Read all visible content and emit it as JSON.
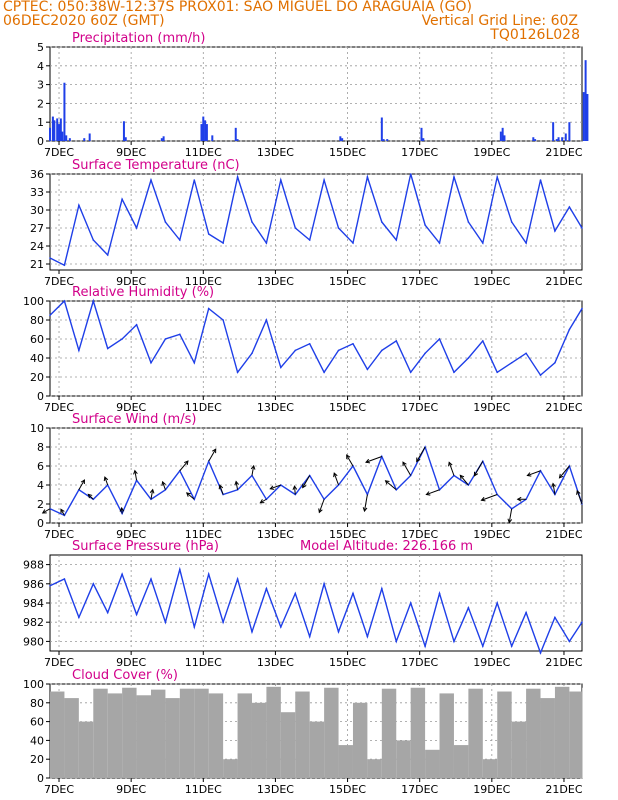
{
  "header": {
    "line1": "CPTEC:  050:38W-12:37S  PROX01: SAO MIGUEL DO ARAGUAIA (GO)",
    "line2": "06DEC2020 60Z (GMT)",
    "grid_note": "Vertical Grid Line: 60Z",
    "code": "TQ0126L028"
  },
  "colors": {
    "header": "#e07000",
    "title": "#d2008a",
    "series": "#1f3fe8",
    "cloud": "#a6a6a6",
    "axis": "#000000"
  },
  "x_axis": {
    "start": "06DEC2020 18Z",
    "end": "21DEC2020 00Z",
    "tick_labels": [
      "7DEC",
      "9DEC",
      "11DEC",
      "13DEC",
      "15DEC",
      "17DEC",
      "19DEC",
      "21DEC"
    ]
  },
  "chart_data": [
    {
      "type": "bar",
      "title": "Precipitation (mm/h)",
      "ylim": [
        0,
        5
      ],
      "y_ticks": [
        "0",
        "1",
        "2",
        "3",
        "4",
        "5"
      ],
      "x_day": [
        0.0,
        0.08,
        0.12,
        0.2,
        0.25,
        0.3,
        0.34,
        0.4,
        0.45,
        0.55,
        0.95,
        1.1,
        2.05,
        2.1,
        3.1,
        3.15,
        4.2,
        4.25,
        4.3,
        4.35,
        4.5,
        5.15,
        5.2,
        8.05,
        8.1,
        9.2,
        9.25,
        9.35,
        10.3,
        10.35,
        12.5,
        12.55,
        12.6,
        13.4,
        13.45,
        13.95,
        14.05,
        14.1,
        14.2,
        14.3,
        14.4,
        14.8,
        14.85,
        14.9
      ],
      "values": [
        0.7,
        1.3,
        1.1,
        1.2,
        0.9,
        1.2,
        0.5,
        3.1,
        0.3,
        0.15,
        0.15,
        0.4,
        1.05,
        0.2,
        0.15,
        0.25,
        0.9,
        1.3,
        1.1,
        0.9,
        0.3,
        0.7,
        0.1,
        0.25,
        0.15,
        1.25,
        0.1,
        0.1,
        0.7,
        0.15,
        0.5,
        0.7,
        0.3,
        0.2,
        0.1,
        1.0,
        0.1,
        0.2,
        0.2,
        0.4,
        1.0,
        2.6,
        4.3,
        2.5
      ]
    },
    {
      "type": "line",
      "title": "Surface Temperature (nC)",
      "ylim": [
        20,
        36
      ],
      "y_ticks": [
        "21",
        "24",
        "27",
        "30",
        "33",
        "36"
      ],
      "x_day": [
        0.0,
        0.4,
        0.8,
        1.2,
        1.6,
        2.0,
        2.4,
        2.8,
        3.2,
        3.6,
        4.0,
        4.4,
        4.8,
        5.2,
        5.6,
        6.0,
        6.4,
        6.8,
        7.2,
        7.6,
        8.0,
        8.4,
        8.8,
        9.2,
        9.6,
        10.0,
        10.4,
        10.8,
        11.2,
        11.6,
        12.0,
        12.4,
        12.8,
        13.2,
        13.6,
        14.0,
        14.4,
        14.75
      ],
      "values": [
        22.0,
        20.8,
        30.8,
        25.0,
        22.5,
        31.8,
        27.0,
        35.0,
        28.0,
        25.0,
        35.0,
        26.0,
        24.5,
        35.5,
        28.0,
        24.5,
        35.0,
        27.0,
        25.0,
        35.0,
        27.0,
        24.5,
        35.5,
        28.0,
        25.0,
        36.0,
        27.5,
        24.5,
        35.5,
        28.0,
        24.5,
        35.5,
        28.0,
        24.5,
        35.0,
        26.5,
        30.5,
        27.0
      ]
    },
    {
      "type": "line",
      "title": "Relative Humidity (%)",
      "ylim": [
        0,
        100
      ],
      "y_ticks": [
        "0",
        "20",
        "40",
        "60",
        "80",
        "100"
      ],
      "x_day": [
        0.0,
        0.4,
        0.8,
        1.2,
        1.6,
        2.0,
        2.4,
        2.8,
        3.2,
        3.6,
        4.0,
        4.4,
        4.8,
        5.2,
        5.6,
        6.0,
        6.4,
        6.8,
        7.2,
        7.6,
        8.0,
        8.4,
        8.8,
        9.2,
        9.6,
        10.0,
        10.4,
        10.8,
        11.2,
        11.6,
        12.0,
        12.4,
        12.8,
        13.2,
        13.6,
        14.0,
        14.4,
        14.75
      ],
      "values": [
        85.0,
        100.0,
        48.0,
        100.0,
        50.0,
        60.0,
        75.0,
        35.0,
        60.0,
        65.0,
        35.0,
        92.0,
        80.0,
        25.0,
        45.0,
        80.0,
        30.0,
        48.0,
        55.0,
        25.0,
        48.0,
        55.0,
        28.0,
        48.0,
        58.0,
        25.0,
        45.0,
        60.0,
        25.0,
        40.0,
        58.0,
        25.0,
        35.0,
        45.0,
        22.0,
        35.0,
        70.0,
        92.0
      ]
    },
    {
      "type": "line",
      "title": "Surface Wind (m/s)",
      "ylim": [
        0,
        10
      ],
      "y_ticks": [
        "0",
        "2",
        "4",
        "6",
        "8",
        "10"
      ],
      "x_day": [
        0.0,
        0.4,
        0.8,
        1.2,
        1.6,
        2.0,
        2.4,
        2.8,
        3.2,
        3.6,
        4.0,
        4.4,
        4.8,
        5.2,
        5.6,
        6.0,
        6.4,
        6.8,
        7.2,
        7.6,
        8.0,
        8.4,
        8.8,
        9.2,
        9.6,
        10.0,
        10.4,
        10.8,
        11.2,
        11.6,
        12.0,
        12.4,
        12.8,
        13.2,
        13.6,
        14.0,
        14.4,
        14.75
      ],
      "values": [
        1.5,
        0.8,
        3.5,
        2.5,
        4.0,
        1.0,
        4.5,
        2.5,
        3.5,
        5.5,
        2.5,
        6.5,
        3.0,
        3.5,
        5.0,
        2.5,
        4.0,
        3.0,
        5.0,
        2.5,
        4.0,
        6.0,
        3.0,
        7.0,
        3.5,
        5.0,
        8.0,
        3.5,
        5.0,
        4.0,
        6.5,
        3.0,
        1.5,
        2.5,
        5.5,
        3.0,
        6.0,
        2.0
      ],
      "arrow_dirs_deg": [
        210,
        120,
        60,
        135,
        110,
        95,
        100,
        80,
        110,
        50,
        140,
        60,
        110,
        100,
        80,
        210,
        200,
        95,
        240,
        250,
        110,
        120,
        260,
        200,
        140,
        120,
        240,
        200,
        110,
        130,
        240,
        200,
        260,
        180,
        200,
        100,
        230,
        110
      ],
      "arrow_lengths": [
        0.6,
        0.5,
        0.8,
        0.5,
        0.6,
        0.4,
        0.7,
        0.7,
        0.6,
        0.9,
        0.7,
        1.0,
        0.7,
        0.6,
        0.7,
        0.5,
        0.8,
        0.6,
        1.0,
        1.0,
        0.9,
        0.9,
        1.2,
        1.2,
        1.0,
        1.1,
        1.2,
        1.0,
        1.0,
        0.9,
        1.2,
        1.2,
        1.0,
        0.6,
        1.0,
        0.8,
        1.1,
        1.0
      ]
    },
    {
      "type": "line",
      "title": "Surface Pressure (hPa)",
      "subtitle": "Model Altitude: 226.166 m",
      "ylim": [
        979,
        989
      ],
      "y_ticks": [
        "980",
        "982",
        "984",
        "986",
        "988"
      ],
      "x_day": [
        0.0,
        0.4,
        0.8,
        1.2,
        1.6,
        2.0,
        2.4,
        2.8,
        3.2,
        3.6,
        4.0,
        4.4,
        4.8,
        5.2,
        5.6,
        6.0,
        6.4,
        6.8,
        7.2,
        7.6,
        8.0,
        8.4,
        8.8,
        9.2,
        9.6,
        10.0,
        10.4,
        10.8,
        11.2,
        11.6,
        12.0,
        12.4,
        12.8,
        13.2,
        13.6,
        14.0,
        14.4,
        14.75
      ],
      "values": [
        985.8,
        986.5,
        982.5,
        986.0,
        983.0,
        987.0,
        982.8,
        986.5,
        982.0,
        987.5,
        981.5,
        987.0,
        982.0,
        986.5,
        981.0,
        985.5,
        981.5,
        985.0,
        980.5,
        986.0,
        981.0,
        985.0,
        980.5,
        985.5,
        980.0,
        984.0,
        979.5,
        985.0,
        980.0,
        983.5,
        979.5,
        984.0,
        979.5,
        983.0,
        978.8,
        982.5,
        980.0,
        982.0
      ]
    },
    {
      "type": "area",
      "title": "Cloud Cover (%)",
      "ylim": [
        0,
        100
      ],
      "y_ticks": [
        "0",
        "20",
        "40",
        "60",
        "80",
        "100"
      ],
      "x_day": [
        0.0,
        0.4,
        0.8,
        1.2,
        1.6,
        2.0,
        2.4,
        2.8,
        3.2,
        3.6,
        4.0,
        4.4,
        4.8,
        5.2,
        5.6,
        6.0,
        6.4,
        6.8,
        7.2,
        7.6,
        8.0,
        8.4,
        8.8,
        9.2,
        9.6,
        10.0,
        10.4,
        10.8,
        11.2,
        11.6,
        12.0,
        12.4,
        12.8,
        13.2,
        13.6,
        14.0,
        14.4,
        14.75
      ],
      "values": [
        92.0,
        85.0,
        60.0,
        95.0,
        90.0,
        96.0,
        88.0,
        94.0,
        85.0,
        95.0,
        95.0,
        90.0,
        20.0,
        90.0,
        80.0,
        97.0,
        70.0,
        92.0,
        60.0,
        96.0,
        35.0,
        80.0,
        20.0,
        95.0,
        40.0,
        96.0,
        30.0,
        90.0,
        35.0,
        95.0,
        20.0,
        92.0,
        60.0,
        95.0,
        85.0,
        97.0,
        92.0,
        96.0
      ]
    }
  ]
}
